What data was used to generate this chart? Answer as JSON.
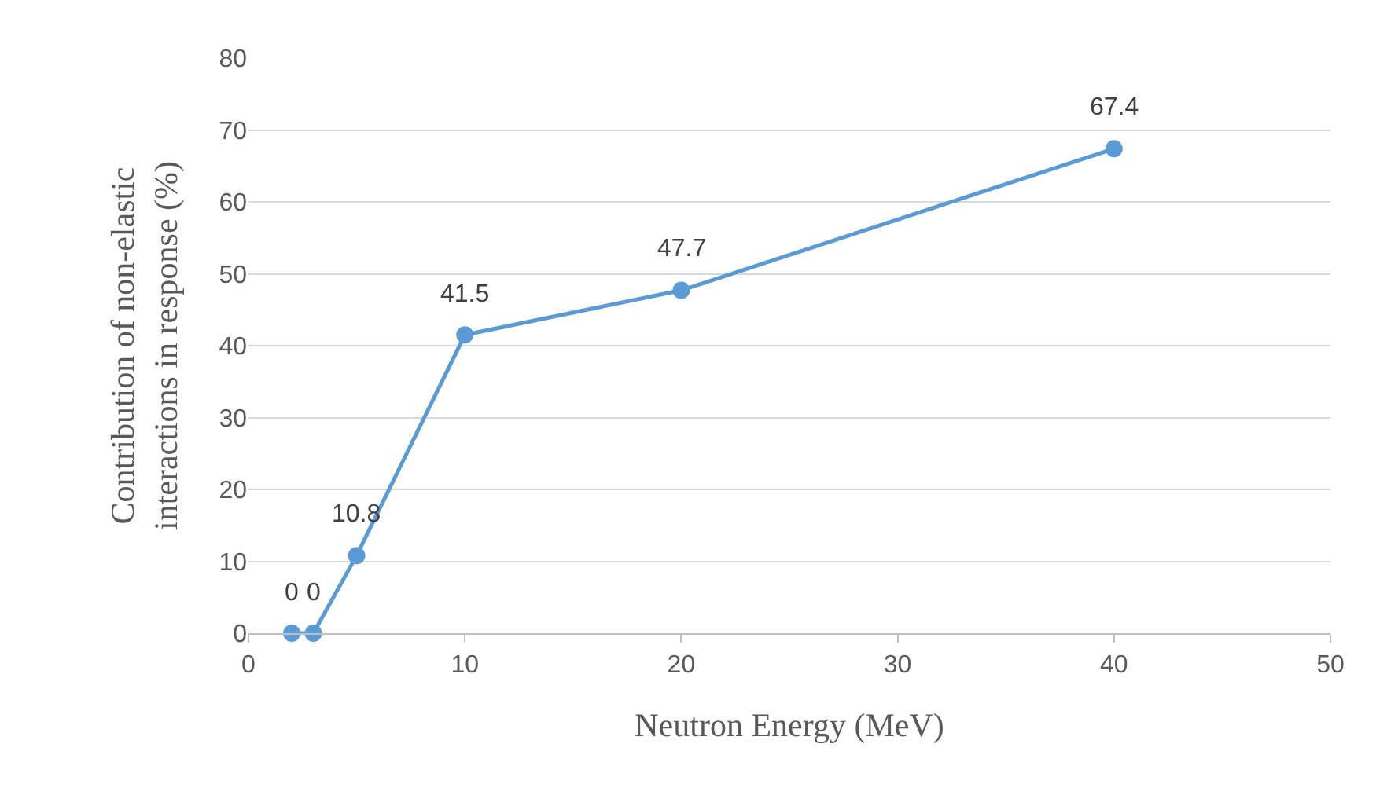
{
  "chart_data": {
    "type": "line",
    "xlabel": "Neutron Energy (MeV)",
    "ylabel": "Contribution of non-elastic\ninteractions in response (%)",
    "x": [
      2,
      3,
      5,
      10,
      20,
      40
    ],
    "series": [
      {
        "color": "#5b9bd5",
        "values": [
          0,
          0,
          10.8,
          41.5,
          47.7,
          67.4
        ]
      }
    ],
    "xlim": [
      0,
      50
    ],
    "xticks": [
      0,
      10,
      20,
      30,
      40,
      50
    ],
    "ylim": [
      0,
      80
    ],
    "yticks": [
      0,
      10,
      20,
      30,
      40,
      50,
      60,
      70,
      80
    ],
    "grid": "y",
    "marker": "circle",
    "line_style": "solid",
    "data_labels": true
  }
}
